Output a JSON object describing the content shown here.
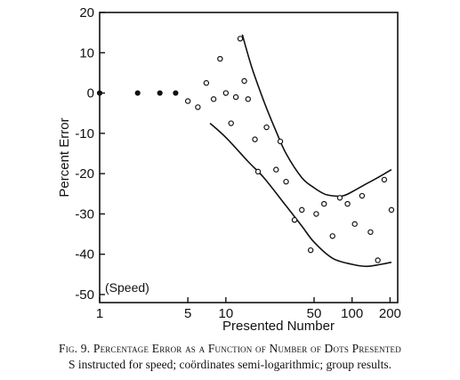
{
  "chart_data": {
    "type": "scatter",
    "xscale": "log",
    "xlim": [
      1,
      230
    ],
    "ylim": [
      -52,
      20
    ],
    "grid": false,
    "xlabel": "Presented Number",
    "ylabel": "Percent Error",
    "annotation": "(Speed)",
    "x_ticks": [
      1,
      5,
      10,
      50,
      100,
      200
    ],
    "y_ticks": [
      20,
      10,
      0,
      -10,
      -20,
      -30,
      -40,
      -50
    ],
    "y_tick_labels": [
      "20",
      "10",
      "0",
      "-10",
      "-20",
      "-30",
      "-40",
      "-50"
    ],
    "points_filled": [
      {
        "x": 1,
        "y": 0
      },
      {
        "x": 2,
        "y": 0
      },
      {
        "x": 3,
        "y": 0
      },
      {
        "x": 4,
        "y": 0
      }
    ],
    "points_open": [
      {
        "x": 5,
        "y": -2
      },
      {
        "x": 6,
        "y": -3.5
      },
      {
        "x": 7,
        "y": 2.5
      },
      {
        "x": 8,
        "y": -1.5
      },
      {
        "x": 9,
        "y": 8.5
      },
      {
        "x": 10,
        "y": 0
      },
      {
        "x": 11,
        "y": -7.5
      },
      {
        "x": 12,
        "y": -1
      },
      {
        "x": 13,
        "y": 13.5
      },
      {
        "x": 14,
        "y": 3
      },
      {
        "x": 15,
        "y": -1.5
      },
      {
        "x": 17,
        "y": -11.5
      },
      {
        "x": 18,
        "y": -19.5
      },
      {
        "x": 21,
        "y": -8.5
      },
      {
        "x": 25,
        "y": -19
      },
      {
        "x": 27,
        "y": -12
      },
      {
        "x": 30,
        "y": -22
      },
      {
        "x": 35,
        "y": -31.5
      },
      {
        "x": 40,
        "y": -29
      },
      {
        "x": 47,
        "y": -39
      },
      {
        "x": 52,
        "y": -30
      },
      {
        "x": 60,
        "y": -27.5
      },
      {
        "x": 70,
        "y": -35.5
      },
      {
        "x": 80,
        "y": -26
      },
      {
        "x": 92,
        "y": -27.5
      },
      {
        "x": 105,
        "y": -32.5
      },
      {
        "x": 120,
        "y": -25.5
      },
      {
        "x": 140,
        "y": -34.5
      },
      {
        "x": 160,
        "y": -41.5
      },
      {
        "x": 180,
        "y": -21.5
      },
      {
        "x": 205,
        "y": -29
      }
    ],
    "curves": [
      {
        "label": "upper-bound",
        "points": [
          [
            13.5,
            14.5
          ],
          [
            16,
            6.5
          ],
          [
            20,
            -2
          ],
          [
            25,
            -9.5
          ],
          [
            30,
            -15
          ],
          [
            40,
            -21
          ],
          [
            50,
            -23.5
          ],
          [
            60,
            -25
          ],
          [
            70,
            -25.5
          ],
          [
            85,
            -25.5
          ],
          [
            100,
            -24.5
          ],
          [
            130,
            -22.5
          ],
          [
            160,
            -21
          ],
          [
            205,
            -19
          ]
        ]
      },
      {
        "label": "lower-bound",
        "points": [
          [
            7.5,
            -7.5
          ],
          [
            10,
            -11
          ],
          [
            15,
            -17
          ],
          [
            20,
            -21
          ],
          [
            30,
            -28
          ],
          [
            40,
            -33
          ],
          [
            50,
            -37
          ],
          [
            70,
            -41
          ],
          [
            100,
            -42.5
          ],
          [
            130,
            -43
          ],
          [
            170,
            -42.5
          ],
          [
            205,
            -42
          ]
        ]
      }
    ]
  },
  "caption": {
    "line1": "Fig. 9. Percentage Error as a Function of Number of Dots Presented",
    "line2": "S instructed for speed; coördinates semi-logarithmic; group results."
  }
}
